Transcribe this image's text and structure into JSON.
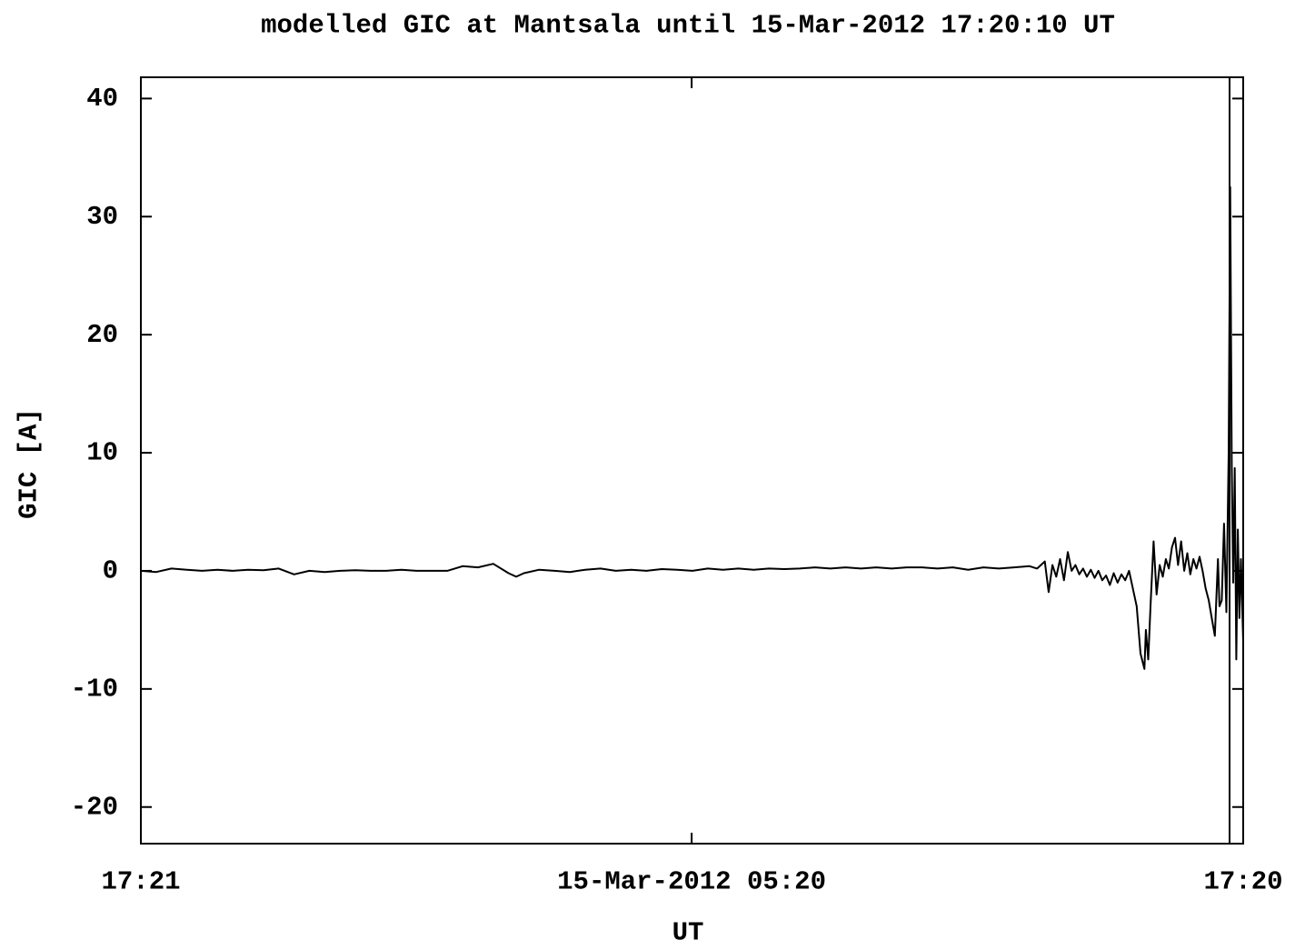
{
  "chart_data": {
    "type": "line",
    "title": "modelled GIC at Mantsala until 15-Mar-2012 17:20:10 UT",
    "xlabel": "UT",
    "ylabel": "GIC [A]",
    "color": "#000000",
    "x": [
      0,
      20,
      40,
      60,
      80,
      100,
      120,
      140,
      160,
      180,
      200,
      220,
      240,
      260,
      280,
      300,
      320,
      340,
      360,
      380,
      400,
      420,
      440,
      460,
      480,
      490,
      500,
      520,
      540,
      560,
      580,
      600,
      620,
      640,
      660,
      680,
      700,
      720,
      740,
      760,
      780,
      800,
      820,
      840,
      860,
      880,
      900,
      920,
      940,
      960,
      980,
      1000,
      1020,
      1040,
      1060,
      1080,
      1100,
      1120,
      1140,
      1160,
      1170,
      1180,
      1185,
      1190,
      1195,
      1200,
      1205,
      1210,
      1215,
      1220,
      1225,
      1230,
      1235,
      1240,
      1245,
      1250,
      1255,
      1260,
      1265,
      1270,
      1275,
      1280,
      1285,
      1290,
      1295,
      1300,
      1305,
      1310,
      1312,
      1315,
      1318,
      1322,
      1326,
      1330,
      1334,
      1338,
      1342,
      1346,
      1350,
      1354,
      1358,
      1362,
      1366,
      1370,
      1374,
      1378,
      1382,
      1386,
      1390,
      1394,
      1398,
      1402,
      1406,
      1408,
      1411,
      1414,
      1417,
      1420,
      1422,
      1424,
      1426,
      1428,
      1430,
      1432,
      1434,
      1436,
      1439
    ],
    "values": [
      0,
      -0.1,
      0.2,
      0.1,
      0,
      0.1,
      0,
      0.1,
      0.05,
      0.2,
      -0.3,
      0,
      -0.1,
      0,
      0.05,
      0,
      0,
      0.1,
      0,
      0,
      0,
      0.4,
      0.3,
      0.6,
      -0.2,
      -0.5,
      -0.2,
      0.1,
      0,
      -0.1,
      0.1,
      0.2,
      0,
      0.1,
      0,
      0.15,
      0.1,
      0,
      0.2,
      0.1,
      0.2,
      0.1,
      0.2,
      0.15,
      0.2,
      0.3,
      0.2,
      0.3,
      0.2,
      0.3,
      0.2,
      0.3,
      0.3,
      0.2,
      0.3,
      0.1,
      0.3,
      0.2,
      0.3,
      0.4,
      0.2,
      0.8,
      -1.8,
      0.5,
      -0.5,
      1,
      -0.8,
      1.6,
      0,
      0.5,
      -0.3,
      0.2,
      -0.5,
      0.1,
      -0.6,
      0,
      -0.8,
      -0.4,
      -1.2,
      -0.2,
      -1,
      -0.3,
      -0.8,
      0,
      -1.5,
      -3,
      -7,
      -8.3,
      -5,
      -7.5,
      -3,
      2.5,
      -2,
      0.5,
      -0.5,
      1,
      0.2,
      2,
      2.8,
      0.5,
      2.5,
      0,
      1.5,
      -0.3,
      1,
      0.2,
      1.2,
      0,
      -1.5,
      -2.5,
      -4,
      -5.5,
      1,
      -3,
      -2.5,
      4,
      -3.5,
      10,
      32.5,
      9,
      -1,
      8.7,
      -7.5,
      3.5,
      -4,
      1,
      -6
    ],
    "xlim": [
      0,
      1439
    ],
    "xticks": [
      {
        "value": 0,
        "label": "17:21"
      },
      {
        "value": 719,
        "label": "15-Mar-2012 05:20"
      },
      {
        "value": 1439,
        "label": "17:20"
      }
    ],
    "ylim": [
      -23.1,
      41.8
    ],
    "yticks": [
      -20,
      -10,
      0,
      10,
      20,
      30,
      40
    ],
    "grid": false
  }
}
